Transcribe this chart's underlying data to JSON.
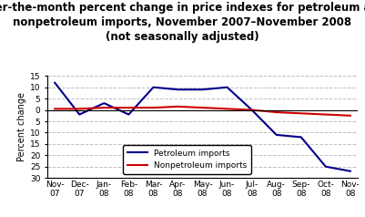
{
  "title_line1": "Over-the-month percent change in price indexes for petroleum and",
  "title_line2": "nonpetroleum imports, November 2007–November 2008",
  "title_line3": "(not seasonally adjusted)",
  "ylabel": "Percent change",
  "xlabels": [
    "Nov-\n07",
    "Dec-\n07",
    "Jan-\n08",
    "Feb-\n08",
    "Mar-\n08",
    "Apr-\n08",
    "May-\n08",
    "Jun-\n08",
    "Jul-\n08",
    "Aug-\n08",
    "Sep-\n08",
    "Oct-\n08",
    "Nov-\n08"
  ],
  "petroleum": [
    12,
    -2,
    3,
    -2,
    10,
    9,
    9,
    10,
    0,
    -11,
    -12,
    -25,
    -27
  ],
  "nonpetroleum": [
    0.5,
    0.5,
    1,
    1,
    1,
    1.5,
    1,
    0.5,
    0,
    -1,
    -1.5,
    -2,
    -2.5
  ],
  "petroleum_color": "#00008B",
  "nonpetroleum_color": "#CC0000",
  "ylim": [
    -30,
    15
  ],
  "ytick_values": [
    -30,
    -25,
    -20,
    -15,
    -10,
    -5,
    0,
    5,
    10,
    15
  ],
  "ytick_labels": [
    "30",
    "25",
    "20",
    "15",
    "10",
    "5",
    "0",
    "5",
    "10",
    "15"
  ],
  "bg_color": "#FFFFFF",
  "grid_color": "#C0C0C0",
  "title_fontsize": 8.5,
  "legend_labels": [
    "Petroleum imports",
    "Nonpetroleum imports"
  ]
}
